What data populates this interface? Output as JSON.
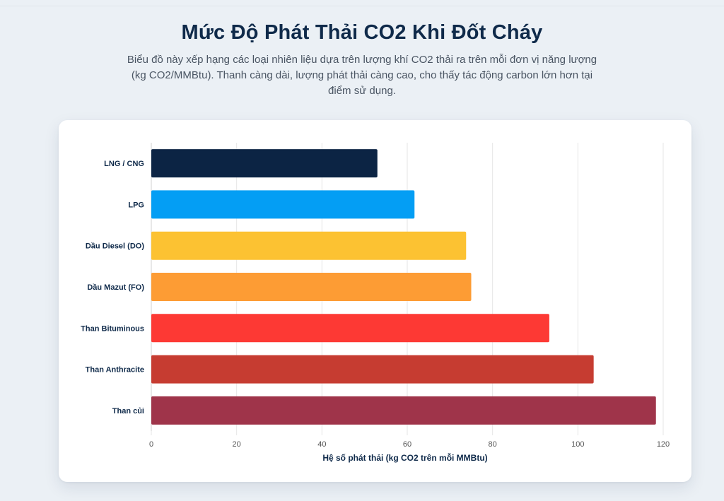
{
  "page": {
    "title": "Mức Độ Phát Thải CO2 Khi Đốt Cháy",
    "subtitle": "Biểu đồ này xếp hạng các loại nhiên liệu dựa trên lượng khí CO2 thải ra trên mỗi đơn vị năng lượng (kg CO2/MMBtu). Thanh càng dài, lượng phát thải càng cao, cho thấy tác động carbon lớn hơn tại điểm sử dụng."
  },
  "chart_data": {
    "type": "bar",
    "orientation": "horizontal",
    "categories": [
      "LNG / CNG",
      "LPG",
      "Dầu Diesel (DO)",
      "Dầu Mazut (FO)",
      "Than Bituminous",
      "Than Anthracite",
      "Than củi"
    ],
    "values": [
      53,
      61.7,
      73.8,
      75,
      93.3,
      103.7,
      118.3
    ],
    "colors": [
      "#0c2444",
      "#049ef4",
      "#fcc232",
      "#fd9c34",
      "#fd3934",
      "#c63c31",
      "#9f344a"
    ],
    "xlabel": "Hệ số phát thải (kg CO2 trên mỗi MMBtu)",
    "ylabel": "",
    "xlim": [
      0,
      120
    ],
    "xticks": [
      0,
      20,
      40,
      60,
      80,
      100,
      120
    ],
    "grid": true,
    "legend": "none"
  }
}
